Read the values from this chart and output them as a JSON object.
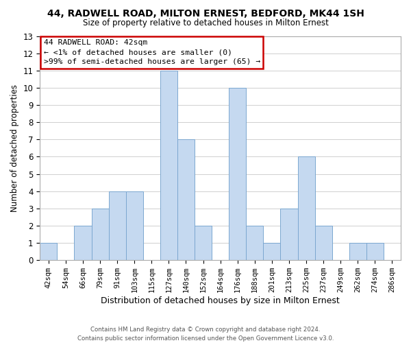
{
  "title": "44, RADWELL ROAD, MILTON ERNEST, BEDFORD, MK44 1SH",
  "subtitle": "Size of property relative to detached houses in Milton Ernest",
  "xlabel": "Distribution of detached houses by size in Milton Ernest",
  "ylabel": "Number of detached properties",
  "bins": [
    "42sqm",
    "54sqm",
    "66sqm",
    "79sqm",
    "91sqm",
    "103sqm",
    "115sqm",
    "127sqm",
    "140sqm",
    "152sqm",
    "164sqm",
    "176sqm",
    "188sqm",
    "201sqm",
    "213sqm",
    "225sqm",
    "237sqm",
    "249sqm",
    "262sqm",
    "274sqm",
    "286sqm"
  ],
  "values": [
    1,
    0,
    2,
    3,
    4,
    4,
    0,
    11,
    7,
    2,
    0,
    10,
    2,
    1,
    3,
    6,
    2,
    0,
    1,
    1,
    0
  ],
  "bar_color": "#c5d9f0",
  "bar_edge_color": "#7ba7d0",
  "background_color": "#ffffff",
  "grid_color": "#c8c8c8",
  "annotation_title": "44 RADWELL ROAD: 42sqm",
  "annotation_line1": "← <1% of detached houses are smaller (0)",
  "annotation_line2": ">99% of semi-detached houses are larger (65) →",
  "annotation_box_color": "#ffffff",
  "annotation_box_edge": "#cc0000",
  "ylim": [
    0,
    13
  ],
  "yticks": [
    0,
    1,
    2,
    3,
    4,
    5,
    6,
    7,
    8,
    9,
    10,
    11,
    12,
    13
  ],
  "footer1": "Contains HM Land Registry data © Crown copyright and database right 2024.",
  "footer2": "Contains public sector information licensed under the Open Government Licence v3.0."
}
